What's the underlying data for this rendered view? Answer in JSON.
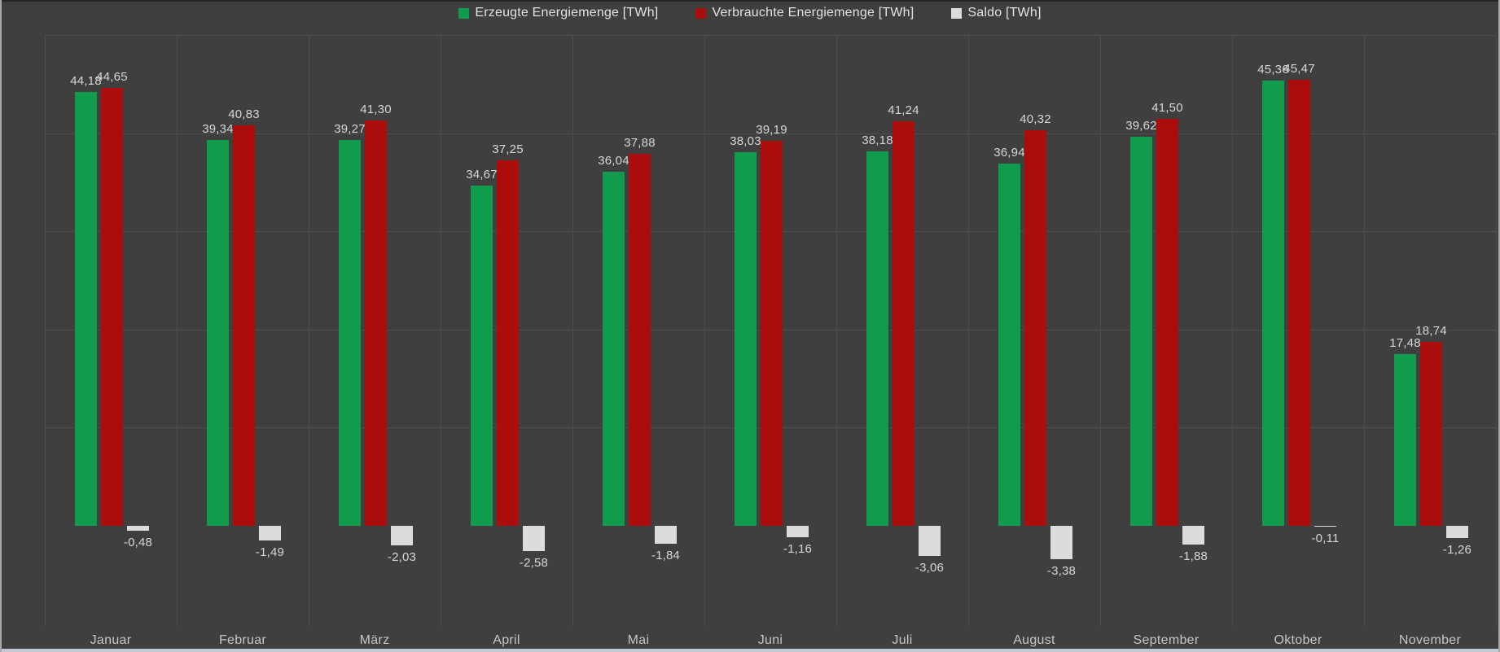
{
  "colors": {
    "background": "#3f3f3f",
    "gridline": "#4e4e4e",
    "value_label": "#d6d6d6",
    "month_label": "#c6c6c6",
    "legend_text": "#e2e2e2",
    "produced_green": "#119b4d",
    "consumed_red": "#ab0c0c",
    "saldo_gray": "#dcdcdc",
    "window_bottom_edge": "#c3c9cf"
  },
  "chart_data": {
    "type": "bar",
    "title": "",
    "xlabel": "",
    "ylabel": "",
    "legend_position": "top",
    "grid": true,
    "ylim": [
      0,
      50
    ],
    "grid_step": 10,
    "categories": [
      "Januar",
      "Februar",
      "März",
      "April",
      "Mai",
      "Juni",
      "Juli",
      "August",
      "September",
      "Oktober",
      "November"
    ],
    "series": [
      {
        "name": "Erzeugte Energiemenge [TWh]",
        "color": "#119b4d",
        "values": [
          44.18,
          39.34,
          39.27,
          34.67,
          36.04,
          38.03,
          38.18,
          36.94,
          39.62,
          45.36,
          17.48
        ],
        "labels": [
          "44,18",
          "39,34",
          "39,27",
          "34,67",
          "36,04",
          "38,03",
          "38,18",
          "36,94",
          "39,62",
          "45,36",
          "17,48"
        ]
      },
      {
        "name": "Verbrauchte Energiemenge [TWh]",
        "color": "#ab0c0c",
        "values": [
          44.65,
          40.83,
          41.3,
          37.25,
          37.88,
          39.19,
          41.24,
          40.32,
          41.5,
          45.47,
          18.74
        ],
        "labels": [
          "44,65",
          "40,83",
          "41,30",
          "37,25",
          "37,88",
          "39,19",
          "41,24",
          "40,32",
          "41,50",
          "45,47",
          "18,74"
        ]
      },
      {
        "name": "Saldo [TWh]",
        "color": "#dcdcdc",
        "values": [
          -0.48,
          -1.49,
          -2.03,
          -2.58,
          -1.84,
          -1.16,
          -3.06,
          -3.38,
          -1.88,
          -0.11,
          -1.26
        ],
        "labels": [
          "-0,48",
          "-1,49",
          "-2,03",
          "-2,58",
          "-1,84",
          "-1,16",
          "-3,06",
          "-3,38",
          "-1,88",
          "-0,11",
          "-1,26"
        ]
      }
    ]
  }
}
